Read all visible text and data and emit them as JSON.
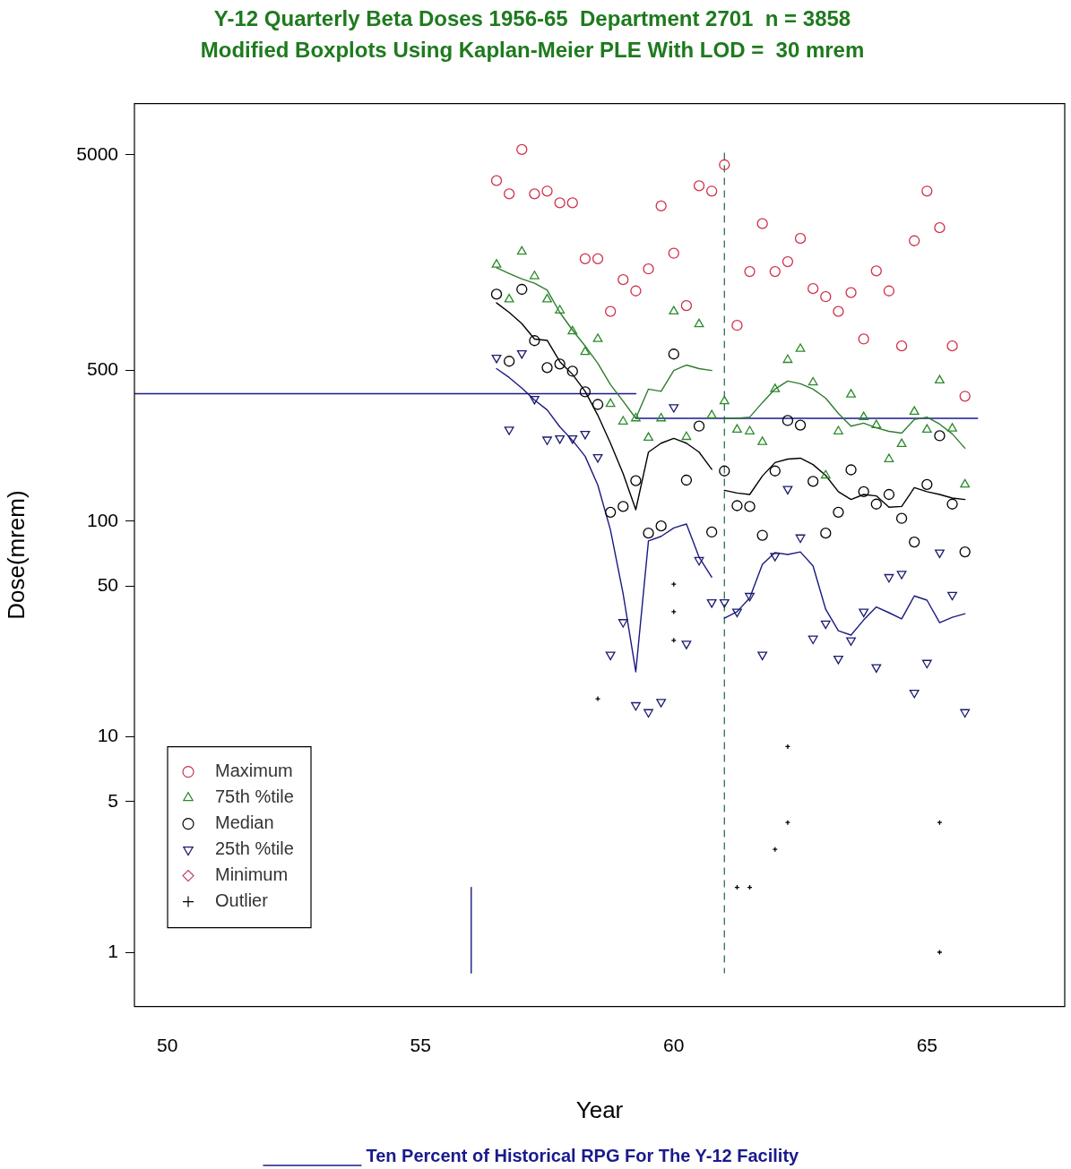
{
  "chart_data": {
    "type": "scatter",
    "title": "Y-12 Quarterly Beta Doses 1956-65  Department 2701  n = 3858",
    "subtitle": "Modified Boxplots Using Kaplan-Meier PLE With LOD =  30 mrem",
    "xlabel": "Year",
    "ylabel": "Dose(mrem)",
    "log": "y",
    "xlim": [
      49.35,
      67.72
    ],
    "xticks": [
      50,
      55,
      60,
      65
    ],
    "ylim": [
      0.56,
      8660
    ],
    "yticks": [
      1,
      5,
      10,
      50,
      100,
      500,
      5000
    ],
    "legend": "bottom left",
    "grid": false,
    "x": [
      56.5,
      56.75,
      57,
      57.25,
      57.5,
      57.75,
      58,
      58.25,
      58.5,
      58.75,
      59,
      59.25,
      59.5,
      59.75,
      60,
      60.25,
      60.5,
      60.75,
      61,
      61.25,
      61.5,
      61.75,
      62,
      62.25,
      62.5,
      62.75,
      63,
      63.25,
      63.5,
      63.75,
      64,
      64.25,
      64.5,
      64.75,
      65,
      65.25,
      65.5,
      65.75
    ],
    "ref_lines": [
      {
        "axis": "x",
        "value": 61,
        "color": "#2f6f4f",
        "line_style": "dashed"
      }
    ],
    "series": [
      {
        "name": "Maximum",
        "color": "#d0304a",
        "marker": "circle",
        "values": [
          3800,
          3300,
          5300,
          3300,
          3400,
          3000,
          3000,
          1650,
          1650,
          940,
          1320,
          1170,
          1480,
          2900,
          1750,
          1000,
          3600,
          3400,
          4500,
          810,
          1440,
          2400,
          1440,
          1600,
          2050,
          1200,
          1100,
          940,
          1150,
          700,
          1450,
          1170,
          650,
          2000,
          3400,
          2300,
          650,
          380
        ]
      },
      {
        "name": "75th %tile",
        "color": "#2a8a2a",
        "marker": "triangle",
        "values": [
          1550,
          1070,
          1780,
          1370,
          1070,
          950,
          760,
          610,
          700,
          350,
          290,
          300,
          244,
          300,
          940,
          246,
          820,
          310,
          360,
          266,
          261,
          233,
          410,
          560,
          630,
          440,
          163,
          261,
          387,
          304,
          279,
          194,
          228,
          322,
          266,
          450,
          269,
          148
        ]
      },
      {
        "name": "Median",
        "color": "#000000",
        "marker": "circle",
        "values": [
          1130,
          552,
          1190,
          688,
          516,
          536,
          496,
          398,
          348,
          110,
          117,
          154,
          88,
          95,
          596,
          155,
          276,
          89,
          171,
          118,
          117,
          86,
          171,
          293,
          279,
          153,
          88,
          110,
          173,
          137,
          120,
          133,
          103,
          80,
          148,
          249,
          120,
          72
        ]
      },
      {
        "name": "25th %tile",
        "color": "#1a1a6e",
        "marker": "triangle-down",
        "values": [
          573,
          266,
          601,
          369,
          239,
          242,
          242,
          254,
          198,
          24,
          34,
          14,
          13,
          14.5,
          338,
          27,
          66,
          42,
          42,
          38,
          45,
          24,
          69,
          141,
          84,
          28.5,
          33.5,
          23,
          28,
          38,
          21,
          55,
          57,
          16,
          22,
          71.5,
          45.5,
          13
        ]
      },
      {
        "name": "Minimum",
        "color": "#c04060",
        "marker": "diamond",
        "values": [
          null,
          null,
          null,
          null,
          null,
          null,
          null,
          null,
          null,
          null,
          null,
          null,
          null,
          null,
          null,
          null,
          null,
          null,
          null,
          null,
          null,
          null,
          null,
          null,
          null,
          null,
          null,
          null,
          null,
          null,
          null,
          null,
          null,
          null,
          null,
          null,
          null,
          null
        ]
      },
      {
        "name": "Outlier",
        "color": "#000000",
        "marker": "cross",
        "x": [
          58.5,
          60,
          60,
          60,
          62.25,
          62.25,
          62,
          61.25,
          61.5,
          65.25,
          65.25
        ],
        "values": [
          15,
          51,
          38,
          28,
          9,
          4,
          3,
          2,
          2,
          4,
          1
        ]
      },
      {
        "type": "line",
        "color": "#2e7d2e",
        "x": [
          56.5,
          56.75,
          57,
          57.25,
          57.5,
          57.75,
          58,
          58.25,
          58.5,
          58.75,
          59,
          59.25,
          59.5,
          59.75,
          60,
          60.25,
          60.5,
          60.75
        ],
        "values": [
          1500,
          1410,
          1330,
          1270,
          1180,
          930,
          770,
          650,
          540,
          430,
          360,
          300,
          410,
          400,
          500,
          530,
          510,
          500
        ]
      },
      {
        "type": "line",
        "color": "#2e7d2e",
        "x": [
          61,
          61.25,
          61.5,
          61.75,
          62,
          62.25,
          62.5,
          62.75,
          63,
          63.25,
          63.5,
          63.75,
          64,
          64.25,
          64.5,
          64.75,
          65,
          65.25,
          65.5,
          65.75
        ],
        "values": [
          300,
          300,
          304,
          355,
          410,
          447,
          434,
          410,
          372,
          316,
          276,
          285,
          271,
          261,
          256,
          296,
          304,
          282,
          254,
          218
        ]
      },
      {
        "type": "line",
        "color": "#000000",
        "x": [
          56.5,
          56.75,
          57,
          57.25,
          57.5,
          57.75,
          58,
          58.25,
          58.5,
          58.75,
          59,
          59.25,
          59.5,
          59.75,
          60,
          60.25,
          60.5,
          60.75
        ],
        "values": [
          1030,
          930,
          825,
          700,
          690,
          550,
          480,
          400,
          310,
          230,
          166,
          113,
          209,
          230,
          242,
          230,
          209,
          174
        ]
      },
      {
        "type": "line",
        "color": "#000000",
        "x": [
          61,
          61.25,
          61.5,
          61.75,
          62,
          62.25,
          62.5,
          62.75,
          63,
          63.25,
          63.5,
          63.75,
          64,
          64.25,
          64.5,
          64.75,
          65,
          65.25,
          65.5,
          65.75
        ],
        "values": [
          139,
          135,
          133,
          162,
          187,
          194,
          196,
          183,
          163,
          137,
          126,
          133,
          131,
          116,
          117,
          143,
          137,
          133,
          128,
          126
        ]
      },
      {
        "type": "line",
        "color": "#1a1a80",
        "x": [
          56.5,
          56.75,
          57,
          57.25,
          57.5,
          57.75,
          58,
          58.25,
          58.5,
          58.75,
          59,
          59.25,
          59.5,
          59.75,
          60,
          60.25,
          60.5,
          60.75
        ],
        "values": [
          510,
          464,
          414,
          365,
          328,
          274,
          237,
          200,
          147,
          91,
          46,
          20,
          81,
          85,
          93,
          97,
          68,
          55
        ]
      },
      {
        "type": "line",
        "color": "#1a1a80",
        "x": [
          61,
          61.25,
          61.5,
          61.75,
          62,
          62.25,
          62.5,
          62.75,
          63,
          63.25,
          63.5,
          63.75,
          64,
          64.25,
          64.5,
          64.75,
          65,
          65.25,
          65.5,
          65.75
        ],
        "values": [
          35.5,
          38,
          44,
          63,
          71.5,
          70,
          72,
          62,
          39,
          31,
          29.6,
          34.8,
          40,
          37.6,
          35.2,
          45,
          43,
          33.8,
          35.8,
          37.2
        ]
      },
      {
        "type": "line",
        "color": "#1a1a80",
        "x": [
          56,
          56
        ],
        "values": [
          0.8,
          2
        ]
      },
      {
        "type": "line",
        "name": "Ten Percent of Historical RPG For The Y-12 Facility",
        "color": "#1a1a8c",
        "x": [
          49.35,
          59.25
        ],
        "values": [
          390,
          390
        ]
      },
      {
        "type": "line",
        "color": "#1a1a8c",
        "x": [
          59.25,
          66
        ],
        "values": [
          300,
          300
        ]
      }
    ]
  }
}
